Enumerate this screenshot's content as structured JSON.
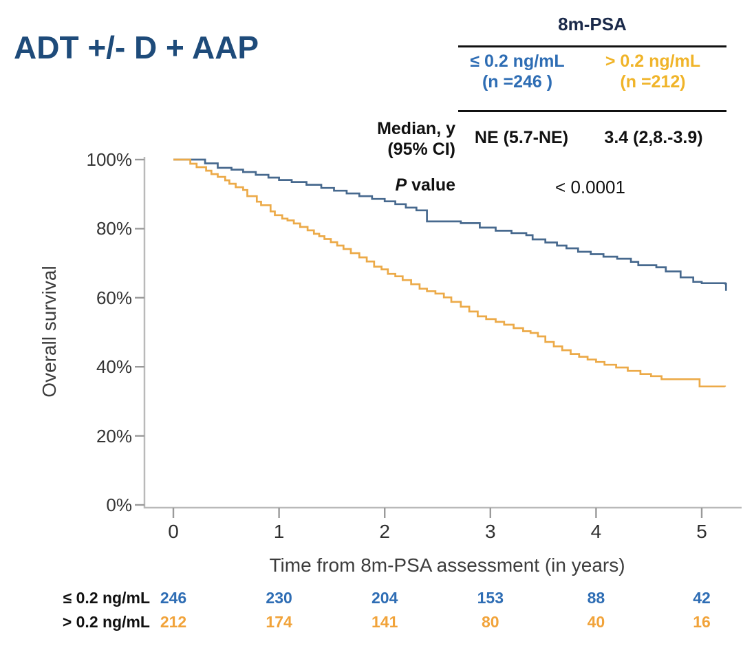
{
  "title": {
    "text": "ADT +/- D + AAP",
    "color": "#1e4b7a"
  },
  "stats_table": {
    "header": "8m-PSA",
    "header_color": "#1b2a4a",
    "columns": [
      {
        "label": "≤ 0.2 ng/mL",
        "n_label": "(n =246 )",
        "color": "#2e6db4"
      },
      {
        "label": "> 0.2 ng/mL",
        "n_label": "(n =212)",
        "color": "#f0b429"
      }
    ],
    "rows": [
      {
        "label_line1": "Median, y",
        "label_line2": "(95% CI)",
        "values": [
          "NE (5.7-NE)",
          "3.4 (2,8.-3.9)"
        ]
      },
      {
        "label_italic": "P",
        "label_rest": " value",
        "value": "< 0.0001"
      }
    ]
  },
  "chart_data": {
    "type": "line",
    "subtype": "kaplan-meier-step",
    "title": "",
    "xlabel": "Time from 8m-PSA assessment (in years)",
    "ylabel": "Overall survival",
    "xlim": [
      0,
      5.4
    ],
    "ylim": [
      0,
      100
    ],
    "xticks": [
      0,
      1,
      2,
      3,
      4,
      5
    ],
    "yticks": [
      {
        "value": 100,
        "label": "100%"
      },
      {
        "value": 80,
        "label": "80%"
      },
      {
        "value": 60,
        "label": "60%"
      },
      {
        "value": 40,
        "label": "40%"
      },
      {
        "value": 20,
        "label": "20%"
      },
      {
        "value": 0,
        "label": "0%"
      }
    ],
    "grid": false,
    "legend": "none (series identified by colors in tables)",
    "axis_color": "#b9b9b9",
    "tick_color": "#9a9a9a",
    "series": [
      {
        "name": "≤ 0.2 ng/mL",
        "color": "#47698e",
        "points": [
          [
            0,
            100
          ],
          [
            0.3,
            98.9
          ],
          [
            0.42,
            97.6
          ],
          [
            0.55,
            97.1
          ],
          [
            0.66,
            96.4
          ],
          [
            0.78,
            95.6
          ],
          [
            0.9,
            94.8
          ],
          [
            1.0,
            94.1
          ],
          [
            1.12,
            93.5
          ],
          [
            1.26,
            92.7
          ],
          [
            1.4,
            91.8
          ],
          [
            1.52,
            91.0
          ],
          [
            1.64,
            90.2
          ],
          [
            1.76,
            89.4
          ],
          [
            1.88,
            88.6
          ],
          [
            2.0,
            87.9
          ],
          [
            2.1,
            87.1
          ],
          [
            2.2,
            86.1
          ],
          [
            2.3,
            85.3
          ],
          [
            2.4,
            82.1
          ],
          [
            2.72,
            81.6
          ],
          [
            2.9,
            80.3
          ],
          [
            3.05,
            79.4
          ],
          [
            3.2,
            78.7
          ],
          [
            3.34,
            78.1
          ],
          [
            3.4,
            76.9
          ],
          [
            3.52,
            76.0
          ],
          [
            3.63,
            75.1
          ],
          [
            3.72,
            74.3
          ],
          [
            3.83,
            73.3
          ],
          [
            3.95,
            72.6
          ],
          [
            4.07,
            71.9
          ],
          [
            4.2,
            71.3
          ],
          [
            4.33,
            70.4
          ],
          [
            4.4,
            69.4
          ],
          [
            4.57,
            68.8
          ],
          [
            4.66,
            67.6
          ],
          [
            4.8,
            65.9
          ],
          [
            4.92,
            64.6
          ],
          [
            5.0,
            64.2
          ],
          [
            5.22,
            64.1
          ],
          [
            5.23,
            62.0
          ]
        ]
      },
      {
        "name": "> 0.2 ng/mL",
        "color": "#ecaa48",
        "points": [
          [
            0,
            100
          ],
          [
            0.16,
            98.8
          ],
          [
            0.22,
            97.8
          ],
          [
            0.31,
            96.8
          ],
          [
            0.36,
            95.8
          ],
          [
            0.42,
            95.0
          ],
          [
            0.49,
            94.0
          ],
          [
            0.53,
            93.0
          ],
          [
            0.59,
            92.0
          ],
          [
            0.66,
            91.2
          ],
          [
            0.7,
            89.4
          ],
          [
            0.79,
            87.8
          ],
          [
            0.83,
            86.8
          ],
          [
            0.92,
            85.0
          ],
          [
            0.96,
            83.9
          ],
          [
            1.03,
            82.9
          ],
          [
            1.08,
            82.4
          ],
          [
            1.14,
            81.5
          ],
          [
            1.2,
            80.5
          ],
          [
            1.27,
            79.5
          ],
          [
            1.33,
            78.5
          ],
          [
            1.38,
            77.8
          ],
          [
            1.43,
            77.0
          ],
          [
            1.49,
            76.1
          ],
          [
            1.55,
            75.1
          ],
          [
            1.61,
            74.1
          ],
          [
            1.68,
            72.9
          ],
          [
            1.76,
            71.7
          ],
          [
            1.83,
            70.5
          ],
          [
            1.9,
            69.0
          ],
          [
            1.97,
            68.2
          ],
          [
            2.03,
            66.9
          ],
          [
            2.1,
            66.2
          ],
          [
            2.17,
            65.1
          ],
          [
            2.25,
            63.9
          ],
          [
            2.33,
            62.6
          ],
          [
            2.4,
            61.9
          ],
          [
            2.48,
            61.2
          ],
          [
            2.56,
            60.1
          ],
          [
            2.63,
            58.8
          ],
          [
            2.72,
            57.4
          ],
          [
            2.8,
            56.0
          ],
          [
            2.88,
            54.6
          ],
          [
            2.96,
            53.8
          ],
          [
            3.05,
            53.0
          ],
          [
            3.13,
            52.2
          ],
          [
            3.22,
            51.2
          ],
          [
            3.31,
            50.3
          ],
          [
            3.38,
            49.8
          ],
          [
            3.45,
            48.8
          ],
          [
            3.52,
            47.2
          ],
          [
            3.6,
            45.9
          ],
          [
            3.68,
            44.8
          ],
          [
            3.76,
            43.7
          ],
          [
            3.84,
            42.9
          ],
          [
            3.92,
            42.1
          ],
          [
            4.0,
            41.4
          ],
          [
            4.08,
            40.6
          ],
          [
            4.19,
            39.8
          ],
          [
            4.3,
            38.8
          ],
          [
            4.42,
            37.9
          ],
          [
            4.52,
            37.3
          ],
          [
            4.62,
            36.4
          ],
          [
            4.98,
            34.3
          ],
          [
            5.22,
            34.2
          ]
        ]
      }
    ]
  },
  "risk_table": {
    "times": [
      0,
      1,
      2,
      3,
      4,
      5
    ],
    "rows": [
      {
        "label": "≤ 0.2 ng/mL",
        "color": "#2e6db4",
        "counts": [
          "246",
          "230",
          "204",
          "153",
          "88",
          "42"
        ]
      },
      {
        "label": "> 0.2 ng/mL",
        "color": "#f1a33a",
        "counts": [
          "212",
          "174",
          "141",
          "80",
          "40",
          "16"
        ]
      }
    ]
  }
}
